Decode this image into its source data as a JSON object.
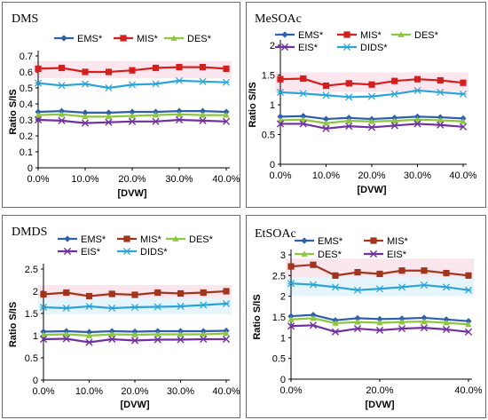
{
  "chart_data": [
    {
      "type": "line",
      "panel_title": "DMS",
      "x": [
        "0.0%",
        "5.0%",
        "10.0%",
        "15.0%",
        "20.0%",
        "25.0%",
        "30.0%",
        "35.0%",
        "40.0%"
      ],
      "xticks": [
        "0.0%",
        "10.0%",
        "20.0%",
        "30.0%",
        "40.0%"
      ],
      "xlabel": "[DVW]",
      "ylabel": "Ratio S/IS",
      "ylim": [
        0,
        0.7
      ],
      "yticks": [
        "0",
        "0.1",
        "0.2",
        "0.3",
        "0.4",
        "0.5",
        "0.6",
        "0.7"
      ],
      "legend_position": "top",
      "series": [
        {
          "name": "EMS*",
          "color": "#2e5fa8",
          "marker": "diamond",
          "values": [
            0.35,
            0.355,
            0.345,
            0.345,
            0.35,
            0.35,
            0.355,
            0.355,
            0.35
          ]
        },
        {
          "name": "MIS*",
          "color": "#d41f1f",
          "marker": "square",
          "values": [
            0.62,
            0.625,
            0.6,
            0.6,
            0.61,
            0.625,
            0.63,
            0.63,
            0.62
          ]
        },
        {
          "name": "DES*",
          "color": "#8dc63f",
          "marker": "triangle",
          "values": [
            0.33,
            0.335,
            0.32,
            0.32,
            0.325,
            0.33,
            0.335,
            0.33,
            0.33
          ]
        },
        {
          "name": "",
          "color": "#7030a0",
          "marker": "x",
          "values": [
            0.3,
            0.295,
            0.28,
            0.285,
            0.29,
            0.29,
            0.3,
            0.295,
            0.29
          ]
        },
        {
          "name": "",
          "color": "#2aa4db",
          "marker": "star",
          "values": [
            0.53,
            0.515,
            0.525,
            0.5,
            0.52,
            0.525,
            0.545,
            0.54,
            0.535
          ]
        }
      ]
    },
    {
      "type": "line",
      "panel_title": "MeSOAc",
      "x": [
        "0.0%",
        "5.0%",
        "10.0%",
        "15.0%",
        "20.0%",
        "25.0%",
        "30.0%",
        "35.0%",
        "40.0%"
      ],
      "xticks": [
        "0.0%",
        "10.0%",
        "20.0%",
        "30.0%",
        "40.0%"
      ],
      "xlabel": "[DVW]",
      "ylabel": "Ratio S/IS",
      "ylim": [
        0,
        2
      ],
      "yticks": [
        "0",
        "0.5",
        "1",
        "1.5",
        "2"
      ],
      "legend_position": "top",
      "series": [
        {
          "name": "EMS*",
          "color": "#2e5fa8",
          "marker": "diamond",
          "values": [
            0.8,
            0.81,
            0.76,
            0.78,
            0.76,
            0.78,
            0.8,
            0.79,
            0.77
          ]
        },
        {
          "name": "MIS*",
          "color": "#d41f1f",
          "marker": "square",
          "values": [
            1.43,
            1.44,
            1.32,
            1.36,
            1.34,
            1.4,
            1.43,
            1.41,
            1.37
          ]
        },
        {
          "name": "DES*",
          "color": "#8dc63f",
          "marker": "triangle",
          "values": [
            0.74,
            0.75,
            0.69,
            0.73,
            0.72,
            0.73,
            0.75,
            0.74,
            0.72
          ]
        },
        {
          "name": "EIS*",
          "color": "#7030a0",
          "marker": "x",
          "values": [
            0.68,
            0.68,
            0.6,
            0.64,
            0.62,
            0.65,
            0.68,
            0.66,
            0.63
          ]
        },
        {
          "name": "DIDS*",
          "color": "#2aa4db",
          "marker": "star",
          "values": [
            1.21,
            1.19,
            1.16,
            1.13,
            1.14,
            1.18,
            1.24,
            1.21,
            1.18
          ]
        }
      ]
    },
    {
      "type": "line",
      "panel_title": "DMDS",
      "x": [
        "0.0%",
        "5.0%",
        "10.0%",
        "15.0%",
        "20.0%",
        "25.0%",
        "30.0%",
        "35.0%",
        "40.0%"
      ],
      "xticks": [
        "0.0%",
        "10.0%",
        "20.0%",
        "30.0%",
        "40.0%"
      ],
      "xlabel": "[DVW]",
      "ylabel": "Ratio S/IS",
      "ylim": [
        0,
        2.5
      ],
      "yticks": [
        "0",
        "0.5",
        "1",
        "1.5",
        "2",
        "2.5"
      ],
      "legend_position": "top",
      "series": [
        {
          "name": "EMS*",
          "color": "#2e5fa8",
          "marker": "diamond",
          "values": [
            1.09,
            1.1,
            1.08,
            1.1,
            1.09,
            1.1,
            1.1,
            1.1,
            1.11
          ]
        },
        {
          "name": "MIS*",
          "color": "#a0351c",
          "marker": "square",
          "values": [
            1.93,
            1.97,
            1.89,
            1.94,
            1.92,
            1.97,
            1.95,
            1.97,
            2.0
          ]
        },
        {
          "name": "DES*",
          "color": "#8dc63f",
          "marker": "triangle",
          "values": [
            1.02,
            1.03,
            1.0,
            1.03,
            1.02,
            1.03,
            1.03,
            1.03,
            1.05
          ]
        },
        {
          "name": "EIS*",
          "color": "#7030a0",
          "marker": "x",
          "values": [
            0.92,
            0.93,
            0.85,
            0.92,
            0.89,
            0.91,
            0.91,
            0.92,
            0.92
          ]
        },
        {
          "name": "DIDS*",
          "color": "#2aa4db",
          "marker": "star",
          "values": [
            1.64,
            1.62,
            1.66,
            1.62,
            1.64,
            1.65,
            1.66,
            1.69,
            1.72
          ]
        }
      ]
    },
    {
      "type": "line",
      "panel_title": "EtSOAc",
      "x": [
        "0.0%",
        "5.0%",
        "10.0%",
        "15.0%",
        "20.0%",
        "25.0%",
        "30.0%",
        "35.0%",
        "40.0%"
      ],
      "xticks": [
        "0.0%",
        "20.0%",
        "40.0%"
      ],
      "xlabel": "[DVW]",
      "ylabel": "Ratio S/IS",
      "ylim": [
        0,
        3
      ],
      "yticks": [
        "0",
        "0.5",
        "1",
        "1.5",
        "2",
        "2.5",
        "3"
      ],
      "legend_position": "top",
      "series": [
        {
          "name": "EMS*",
          "color": "#2e5fa8",
          "marker": "diamond",
          "values": [
            1.52,
            1.55,
            1.42,
            1.47,
            1.45,
            1.46,
            1.48,
            1.44,
            1.4
          ]
        },
        {
          "name": "MIS*",
          "color": "#a0351c",
          "marker": "square",
          "values": [
            2.72,
            2.76,
            2.5,
            2.58,
            2.54,
            2.62,
            2.62,
            2.56,
            2.5
          ]
        },
        {
          "name": "DES*",
          "color": "#8dc63f",
          "marker": "triangle",
          "values": [
            1.44,
            1.47,
            1.35,
            1.38,
            1.36,
            1.38,
            1.39,
            1.36,
            1.32
          ]
        },
        {
          "name": "EIS*",
          "color": "#7030a0",
          "marker": "x",
          "values": [
            1.28,
            1.3,
            1.14,
            1.22,
            1.18,
            1.22,
            1.24,
            1.2,
            1.14
          ]
        },
        {
          "name": "",
          "color": "#2aa4db",
          "marker": "star",
          "values": [
            2.31,
            2.28,
            2.22,
            2.15,
            2.18,
            2.22,
            2.27,
            2.22,
            2.15
          ]
        }
      ]
    }
  ]
}
